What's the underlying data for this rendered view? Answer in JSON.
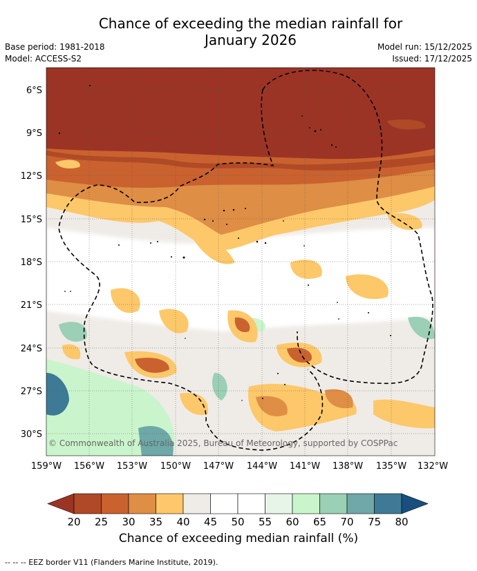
{
  "title_line1": "Chance of exceeding the median rainfall for",
  "title_line2": "January 2026",
  "base_period": "Base period: 1981-2018",
  "model": "Model: ACCESS-S2",
  "model_run": "Model run: 15/12/2025",
  "issued": "Issued: 17/12/2025",
  "copyright": "© Commonwealth of Australia 2025, Bureau of Meteorology, supported by COSPPac",
  "lat_labels": [
    "6°S",
    "9°S",
    "12°S",
    "15°S",
    "18°S",
    "21°S",
    "24°S",
    "27°S",
    "30°S"
  ],
  "lon_labels": [
    "159°W",
    "156°W",
    "153°W",
    "150°W",
    "147°W",
    "144°W",
    "141°W",
    "138°W",
    "135°W",
    "132°W"
  ],
  "colorbar": {
    "ticks": [
      "20",
      "25",
      "30",
      "35",
      "40",
      "45",
      "50",
      "55",
      "60",
      "65",
      "70",
      "75",
      "80"
    ],
    "colors": [
      "#9b3425",
      "#b04a26",
      "#c9622f",
      "#df8e45",
      "#fdc86a",
      "#efebe7",
      "#ffffff",
      "#ffffff",
      "#e7f5e8",
      "#caf5cc",
      "#9bcfb6",
      "#6ea8a8",
      "#3e7a95",
      "#184f7f"
    ],
    "label": "Chance of exceeding median rainfall (%)"
  },
  "footer": "-- -- -- EEZ border V11 (Flanders Marine Institute, 2019)."
}
